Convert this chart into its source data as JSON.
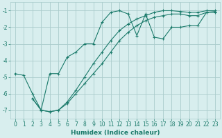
{
  "xlabel": "Humidex (Indice chaleur)",
  "bg_color": "#d8eeee",
  "grid_color": "#aacccc",
  "line_color": "#1a7a6a",
  "xlim": [
    -0.5,
    23.5
  ],
  "ylim": [
    -7.5,
    -0.5
  ],
  "xticks": [
    0,
    1,
    2,
    3,
    4,
    5,
    6,
    7,
    8,
    9,
    10,
    11,
    12,
    13,
    14,
    15,
    16,
    17,
    18,
    19,
    20,
    21,
    22,
    23
  ],
  "yticks": [
    -7,
    -6,
    -5,
    -4,
    -3,
    -2,
    -1
  ],
  "series1_x": [
    0,
    1,
    2,
    3,
    4,
    5,
    6,
    7,
    8,
    9,
    10,
    11,
    12,
    13,
    14,
    15,
    16,
    17,
    18,
    19,
    20,
    21,
    22,
    23
  ],
  "series1_y": [
    -4.8,
    -4.9,
    -6.0,
    -7.0,
    -4.8,
    -4.8,
    -3.8,
    -3.5,
    -3.0,
    -3.0,
    -1.7,
    -1.1,
    -1.0,
    -1.2,
    -2.5,
    -1.2,
    -2.6,
    -2.7,
    -2.0,
    -2.0,
    -1.9,
    -1.9,
    -1.1,
    -1.1
  ],
  "series2_x": [
    2,
    3,
    4,
    5,
    6,
    7,
    8,
    9,
    10,
    11,
    12,
    13,
    14,
    15,
    16,
    17,
    18,
    19,
    20,
    21,
    22,
    23
  ],
  "series2_y": [
    -6.3,
    -7.0,
    -7.1,
    -7.0,
    -6.5,
    -5.8,
    -5.0,
    -4.2,
    -3.5,
    -2.8,
    -2.2,
    -1.8,
    -1.5,
    -1.3,
    -1.1,
    -1.0,
    -1.0,
    -1.05,
    -1.1,
    -1.1,
    -1.0,
    -1.0
  ],
  "series3_x": [
    2,
    3,
    4,
    5,
    6,
    7,
    8,
    9,
    10,
    11,
    12,
    13,
    14,
    15,
    16,
    17,
    18,
    19,
    20,
    21,
    22,
    23
  ],
  "series3_y": [
    -6.3,
    -7.0,
    -7.1,
    -7.0,
    -6.6,
    -6.0,
    -5.4,
    -4.8,
    -4.2,
    -3.5,
    -2.8,
    -2.3,
    -1.9,
    -1.6,
    -1.4,
    -1.3,
    -1.2,
    -1.2,
    -1.3,
    -1.3,
    -1.1,
    -1.05
  ]
}
